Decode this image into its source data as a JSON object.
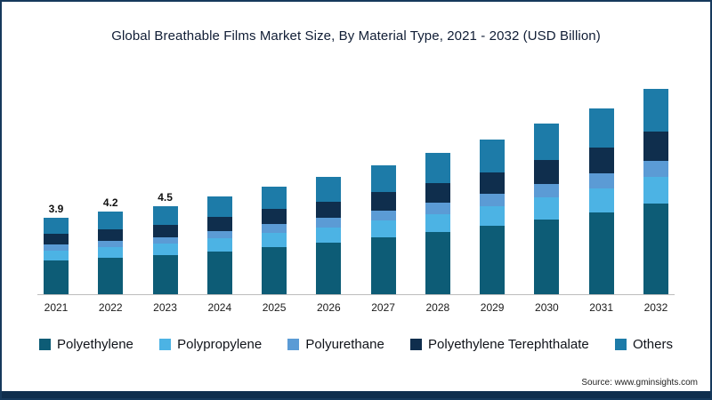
{
  "title": "Global Breathable Films Market Size, By Material Type, 2021 - 2032 (USD Billion)",
  "source": "Source: www.gminsights.com",
  "frame": {
    "border_color": "#16395c",
    "bottom_strip_color": "#0f2e4d"
  },
  "chart_data": {
    "type": "bar",
    "stacked": true,
    "title": "Global Breathable Films Market Size, By Material Type, 2021 - 2032 (USD Billion)",
    "unit": "USD Billion",
    "xlabel": "",
    "ylabel": "",
    "ylim": [
      0,
      11
    ],
    "grid": false,
    "legend_position": "bottom",
    "categories": [
      "2021",
      "2022",
      "2023",
      "2024",
      "2025",
      "2026",
      "2027",
      "2028",
      "2029",
      "2030",
      "2031",
      "2032"
    ],
    "series": [
      {
        "name": "Polyethylene",
        "color": "#0d5c76",
        "values": [
          1.72,
          1.85,
          1.98,
          2.2,
          2.42,
          2.64,
          2.9,
          3.17,
          3.48,
          3.83,
          4.18,
          4.62
        ]
      },
      {
        "name": "Polypropylene",
        "color": "#4cb3e4",
        "values": [
          0.51,
          0.55,
          0.59,
          0.65,
          0.72,
          0.78,
          0.86,
          0.94,
          1.03,
          1.13,
          1.24,
          1.37
        ]
      },
      {
        "name": "Polyurethane",
        "color": "#5b9bd5",
        "values": [
          0.31,
          0.34,
          0.36,
          0.4,
          0.44,
          0.48,
          0.53,
          0.58,
          0.63,
          0.7,
          0.76,
          0.84
        ]
      },
      {
        "name": "Polyethylene Terephthalate",
        "color": "#0f2e4d",
        "values": [
          0.55,
          0.59,
          0.63,
          0.7,
          0.77,
          0.84,
          0.92,
          1.01,
          1.11,
          1.22,
          1.33,
          1.47
        ]
      },
      {
        "name": "Others",
        "color": "#1d7ba8",
        "values": [
          0.82,
          0.88,
          0.95,
          1.05,
          1.16,
          1.26,
          1.39,
          1.51,
          1.66,
          1.83,
          2.0,
          2.21
        ]
      }
    ],
    "totals": [
      3.9,
      4.2,
      4.5,
      5.0,
      5.5,
      6.0,
      6.6,
      7.2,
      7.9,
      8.7,
      9.5,
      10.5
    ],
    "bar_labels": [
      "3.9",
      "4.2",
      "4.5",
      "",
      "",
      "",
      "",
      "",
      "",
      "",
      "",
      ""
    ]
  }
}
